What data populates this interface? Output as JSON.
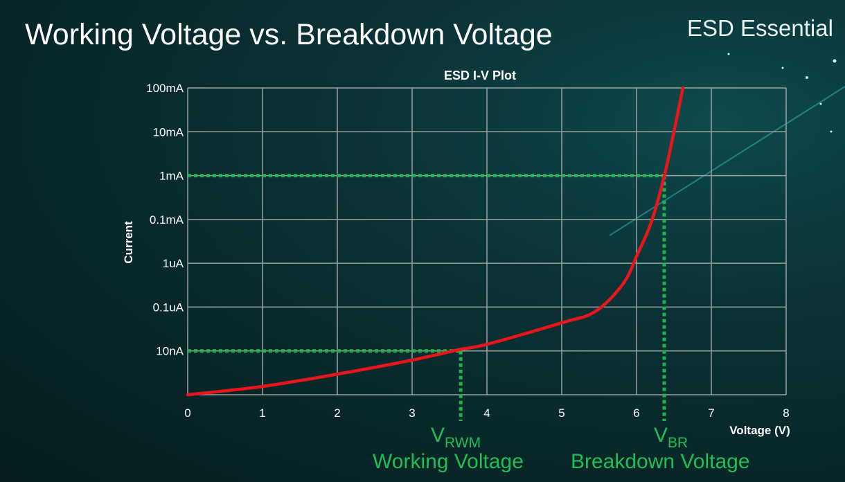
{
  "slide": {
    "title": "Working Voltage vs. Breakdown Voltage",
    "brand": "ESD Essential"
  },
  "annotations": {
    "vrwm_main": "V",
    "vrwm_sub": "RWM",
    "vrwm_caption": "Working Voltage",
    "vbr_main": "V",
    "vbr_sub": "BR",
    "vbr_caption": "Breakdown Voltage"
  },
  "colors": {
    "curve": "#e8161b",
    "guide": "#22b24c",
    "grid": "#9aa3a3",
    "annotation_text": "#1fbf55"
  },
  "chart_data": {
    "type": "line",
    "title": "ESD I-V Plot",
    "xlabel": "Voltage (V)",
    "ylabel": "Current",
    "xlim": [
      0,
      8
    ],
    "x_ticks": [
      "0",
      "1",
      "2",
      "3",
      "4",
      "5",
      "6",
      "7",
      "8"
    ],
    "y_scale": "log",
    "y_ticks": [
      "",
      "10nA",
      "0.1uA",
      "1uA",
      "0.1mA",
      "1mA",
      "10mA",
      "100mA"
    ],
    "y_note_units": "y values are positions on the printed tick ladder (0 = bottom gridline, 7 = 100mA)",
    "grid": true,
    "series": [
      {
        "x": [
          0,
          1,
          2,
          3,
          3.63,
          4,
          5,
          5.45,
          5.82,
          6.0,
          6.2,
          6.37,
          6.5,
          6.62
        ],
        "y": [
          0,
          0.19,
          0.47,
          0.79,
          1.03,
          1.15,
          1.64,
          1.9,
          2.53,
          3.16,
          3.95,
          4.98,
          6.0,
          7.0
        ]
      }
    ],
    "guides": [
      {
        "label": "VRWM",
        "x": 3.65,
        "y": 1,
        "y_label": "10nA"
      },
      {
        "label": "VBR",
        "x": 6.37,
        "y": 5,
        "y_label": "1mA"
      }
    ]
  }
}
